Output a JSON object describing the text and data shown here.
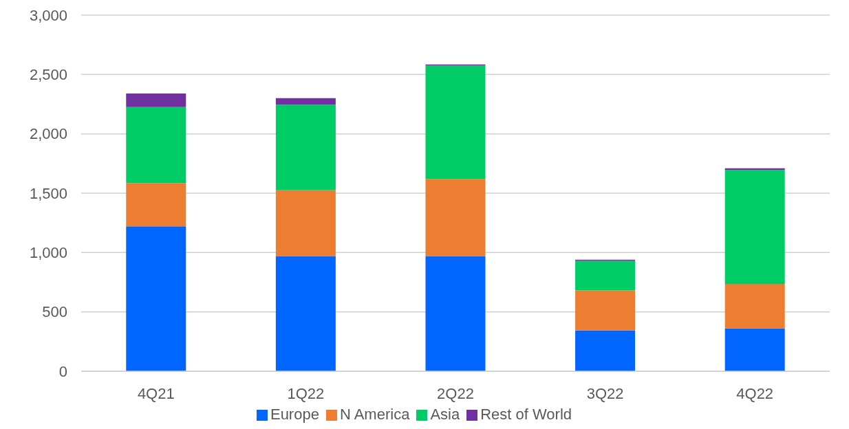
{
  "chart_data": {
    "type": "bar",
    "stacked": true,
    "categories": [
      "4Q21",
      "1Q22",
      "2Q22",
      "3Q22",
      "4Q22"
    ],
    "series": [
      {
        "name": "Europe",
        "color": "#0066ff",
        "values": [
          1220,
          970,
          970,
          345,
          360
        ]
      },
      {
        "name": "N America",
        "color": "#ed7d31",
        "values": [
          365,
          555,
          650,
          335,
          375
        ]
      },
      {
        "name": "Asia",
        "color": "#00cc66",
        "values": [
          640,
          720,
          955,
          250,
          960
        ]
      },
      {
        "name": "Rest of World",
        "color": "#7030a0",
        "values": [
          115,
          55,
          10,
          10,
          15
        ]
      }
    ],
    "ylim": [
      0,
      3000
    ],
    "yticks": [
      0,
      500,
      {
        "value": 1000,
        "label": "1,000"
      },
      {
        "value": 1500,
        "label": "1,500"
      },
      {
        "value": 2000,
        "label": "2,000"
      },
      {
        "value": 2500,
        "label": "2,500"
      },
      {
        "value": 3000,
        "label": "3,000"
      }
    ],
    "grid": "y",
    "legend": "bottom"
  }
}
